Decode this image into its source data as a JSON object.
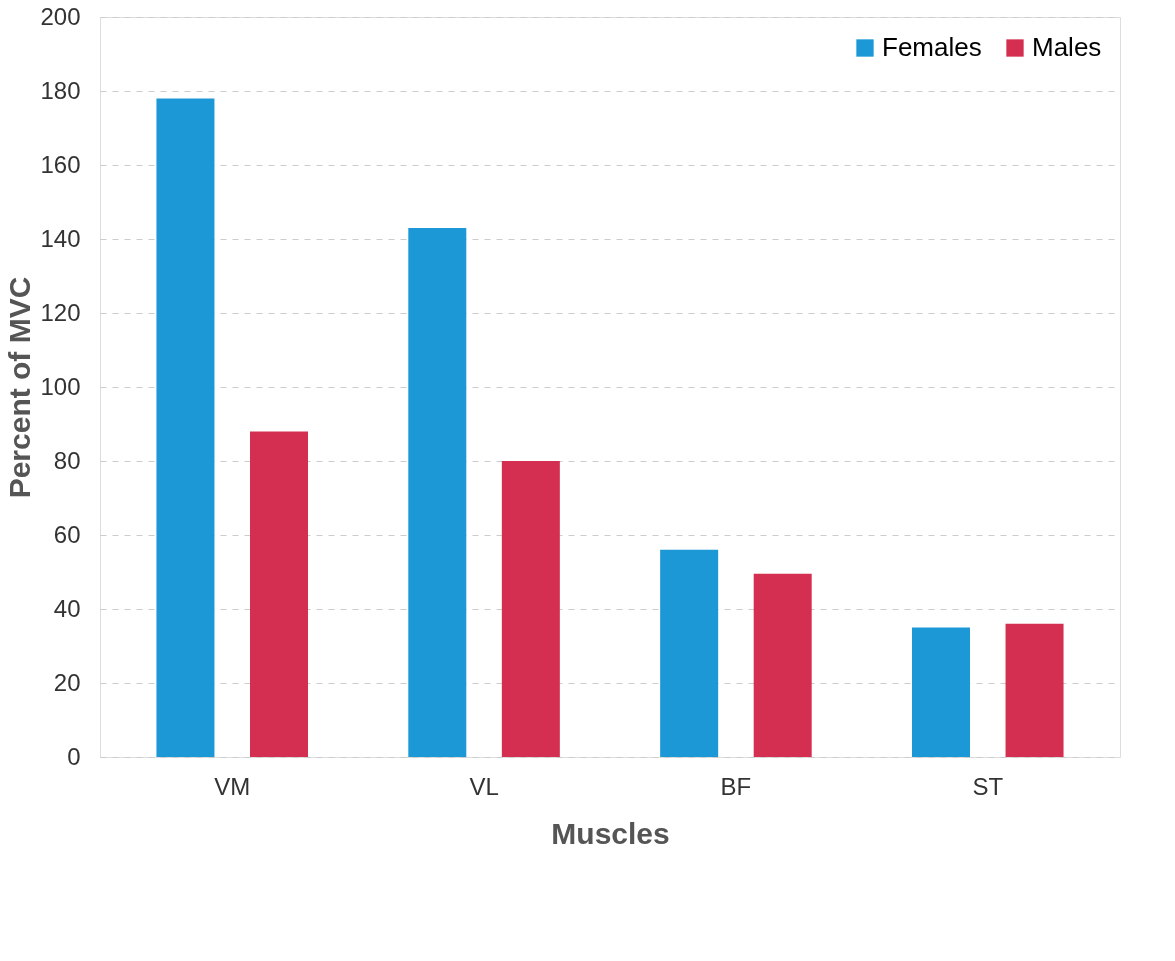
{
  "chart_data": {
    "type": "bar",
    "xlabel": "Muscles",
    "ylabel": "Percent of MVC",
    "categories": [
      "VM",
      "VL",
      "BF",
      "ST"
    ],
    "series": [
      {
        "name": "Females",
        "color": "#1b98d5",
        "values": [
          178,
          143,
          56,
          35
        ]
      },
      {
        "name": "Males",
        "color": "#d42f50",
        "values": [
          88,
          80,
          49.5,
          36
        ]
      }
    ],
    "ylim": [
      0,
      200
    ],
    "yticks": [
      0,
      20,
      40,
      60,
      80,
      100,
      120,
      140,
      160,
      180,
      200
    ],
    "grid": "y",
    "legend": "top right"
  }
}
